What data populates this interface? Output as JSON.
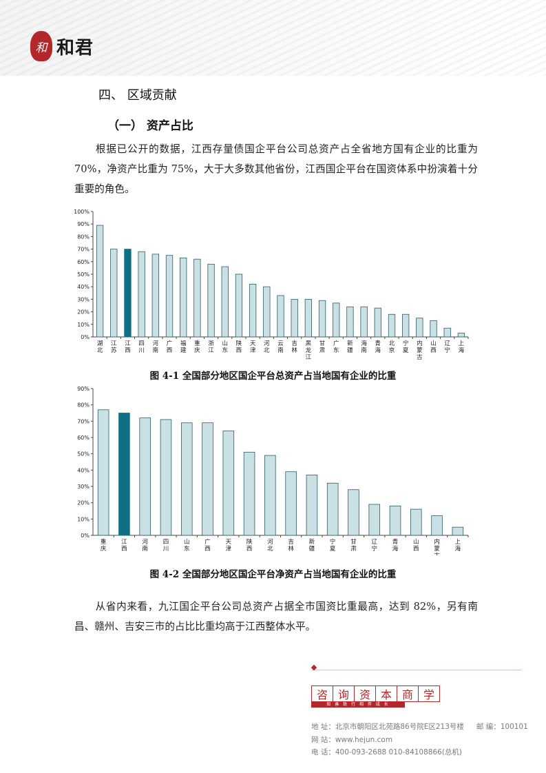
{
  "header": {
    "brand_seal": "和",
    "brand_name": "和君"
  },
  "section": {
    "title": "四、 区域贡献",
    "subtitle": "（一） 资产占比"
  },
  "paragraphs": [
    "根据已公开的数据，江西存量债国企平台公司总资产占全省地方国有企业的比重为 70%，净资产比重为 75%，大于大多数其他省份，江西国企平台在国资体系中扮演着十分重要的角色。",
    "从省内来看，九江国企平台公司总资产占据全市国资比重最高，达到 82%，另有南昌、赣州、吉安三市的占比比重均高于江西整体水平。"
  ],
  "colors": {
    "bar": "#c9e0e4",
    "bar_border": "#2e5a66",
    "highlight": "#0f6f84",
    "brand_red": "#b3262a"
  },
  "chart_data": [
    {
      "type": "bar",
      "title": "图 4-1  全国部分地区国企平台总资产占当地国有企业的比重",
      "categories": [
        "湖北",
        "江苏",
        "江西",
        "四川",
        "河南",
        "广西",
        "福建",
        "重庆",
        "浙江",
        "山东",
        "陕西",
        "天津",
        "河北",
        "云南",
        "吉林",
        "黑龙江",
        "甘肃",
        "广东",
        "新疆",
        "海南",
        "青海",
        "北京",
        "宁夏",
        "内蒙古",
        "山西",
        "辽宁",
        "上海"
      ],
      "values": [
        89,
        70,
        70,
        68,
        66,
        65,
        63,
        62,
        58,
        56,
        50,
        42,
        40,
        33,
        30,
        30,
        29,
        27,
        24,
        24,
        23,
        18,
        18,
        15,
        13,
        7,
        3
      ],
      "highlight_index": 2,
      "ylim": [
        0,
        100
      ],
      "ytick_labels": [
        "0%",
        "10%",
        "20%",
        "30%",
        "40%",
        "50%",
        "60%",
        "70%",
        "80%",
        "90%",
        "100%"
      ],
      "xlabel": "",
      "ylabel": ""
    },
    {
      "type": "bar",
      "title": "图 4-2  全国部分地区国企平台净资产占当地国有企业的比重",
      "categories": [
        "重庆",
        "江西",
        "河南",
        "四川",
        "山东",
        "广西",
        "天津",
        "陕西",
        "河北",
        "吉林",
        "新疆",
        "宁夏",
        "甘肃",
        "辽宁",
        "青海",
        "山西",
        "内蒙古",
        "上海"
      ],
      "values": [
        77,
        75,
        72,
        71,
        69,
        69,
        64,
        51,
        49,
        39,
        37,
        32,
        28,
        19,
        18,
        16,
        12,
        5
      ],
      "highlight_index": 1,
      "ylim": [
        0,
        90
      ],
      "ytick_labels": [
        "0%",
        "10%",
        "20%",
        "30%",
        "40%",
        "50%",
        "60%",
        "70%",
        "80%",
        "90%"
      ],
      "xlabel": "",
      "ylabel": ""
    }
  ],
  "footer": {
    "stamp": [
      "咨",
      "询",
      "资",
      "本",
      "商",
      "学"
    ],
    "stamp_sub": "知 善 致 行    相 伴 成 长",
    "address": "地  址：北京市朝阳区北苑路86号院E区213号楼",
    "postcode": "邮  编：100101",
    "website": "网  站：www.hejun.com",
    "phone": "电  话：400-093-2688    010-84108866(总机)"
  }
}
